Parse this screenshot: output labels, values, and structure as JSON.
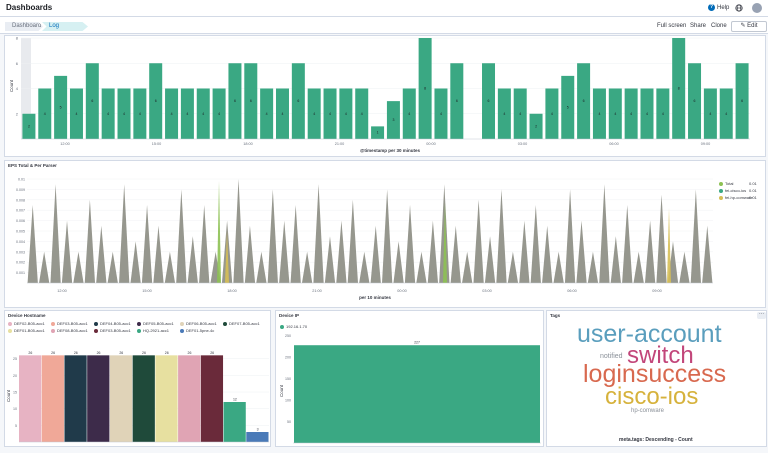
{
  "header": {
    "title": "Dashboards",
    "help_label": "Help"
  },
  "breadcrumbs": [
    "Dashboard",
    "Log Overview"
  ],
  "nav_links": {
    "full_screen": "Full screen",
    "share": "Share",
    "clone": "Clone",
    "edit": "Edit"
  },
  "top_chart": {
    "ylabel": "Count",
    "xlabel": "@timestamp per 30 minutes",
    "y_ticks": [
      "2",
      "4",
      "6",
      "8"
    ],
    "x_ticks": [
      "12:00",
      "15:00",
      "18:00",
      "21:00",
      "00:00",
      "03:00",
      "06:00",
      "09:00"
    ],
    "bars": [
      2,
      4,
      5,
      4,
      6,
      4,
      4,
      4,
      6,
      4,
      4,
      4,
      4,
      6,
      6,
      4,
      4,
      6,
      4,
      4,
      4,
      4,
      1,
      3,
      4,
      8,
      4,
      6,
      0,
      6,
      4,
      4,
      2,
      4,
      5,
      6,
      4,
      4,
      4,
      4,
      4,
      8,
      6,
      4,
      4,
      6
    ],
    "bar_labels": [
      "2",
      "4",
      "5",
      "4",
      "6",
      "4",
      "4",
      "4",
      "6",
      "4",
      "4",
      "4",
      "4",
      "6",
      "6",
      "4",
      "4",
      "6",
      "4",
      "4",
      "4",
      "4",
      "1",
      "3",
      "4",
      "8",
      "4",
      "6",
      "",
      "6",
      "4",
      "4",
      "2",
      "4",
      "5",
      "6",
      "4",
      "4",
      "4",
      "4",
      "4",
      "8",
      "6",
      "4",
      "4",
      "6"
    ],
    "color": "#3aa883"
  },
  "eps_chart": {
    "title": "EPS Total & Per Parser",
    "xlabel": "per 10 minutes",
    "y_ticks": [
      "0.001",
      "0.002",
      "0.003",
      "0.004",
      "0.005",
      "0.006",
      "0.007",
      "0.008",
      "0.009",
      "0.01"
    ],
    "x_ticks": [
      "12:00",
      "15:00",
      "18:00",
      "21:00",
      "00:00",
      "03:00",
      "06:00",
      "09:00"
    ],
    "legend": [
      {
        "name": "Total",
        "value": "0.01",
        "color": "#8dc153"
      },
      {
        "name": "fei-cisco-ios",
        "value": "0.01",
        "color": "#3aa883"
      },
      {
        "name": "fei-hp-comware",
        "value": "0.01",
        "color": "#d6bf57"
      }
    ]
  },
  "hostname_chart": {
    "title": "Device Hostname",
    "ylabel": "Count",
    "y_ticks": [
      "5",
      "10",
      "15",
      "20",
      "25"
    ],
    "legend": [
      {
        "name": "DEF02-B05-acc1",
        "color": "#e7b3c3"
      },
      {
        "name": "DEF03-B05-acc1",
        "color": "#f0a898"
      },
      {
        "name": "DEF04-B05-acc1",
        "color": "#203a4a"
      },
      {
        "name": "DEF05-B05-acc1",
        "color": "#3d2b4a"
      },
      {
        "name": "DEF06-B05-acc1",
        "color": "#e0d3b8"
      },
      {
        "name": "DEF07-B05-acc1",
        "color": "#1f4a3a"
      },
      {
        "name": "DEF01-B05-acc1",
        "color": "#e7e0a0"
      },
      {
        "name": "DEF08-B05-acc1",
        "color": "#e0a4b4"
      },
      {
        "name": "DEF03-B05-acc1",
        "color": "#6a2a3a"
      },
      {
        "name": "HQ-2921-acc1",
        "color": "#3aa883"
      },
      {
        "name": "DEF01-5pne-4c",
        "color": "#4a7ab8"
      }
    ],
    "values": [
      26,
      26,
      26,
      26,
      26,
      26,
      26,
      26,
      26,
      12,
      3
    ],
    "value_labels": [
      "26",
      "26",
      "26",
      "26",
      "26",
      "26",
      "26",
      "26",
      "26",
      "12",
      "3"
    ]
  },
  "device_ip_chart": {
    "title": "Device IP",
    "ylabel": "Count",
    "y_ticks": [
      "50",
      "100",
      "150",
      "200",
      "250"
    ],
    "legend": [
      {
        "name": "192.16.1.70",
        "color": "#3aa883"
      }
    ],
    "value": 227,
    "value_label": "227"
  },
  "tags_cloud": {
    "title": "Tags",
    "footer": "meta.tags: Descending - Count",
    "words": [
      {
        "text": "user-account",
        "color": "#5a9ebd"
      },
      {
        "text": "notified",
        "color": "#8b9199"
      },
      {
        "text": "switch",
        "color": "#c2467a"
      },
      {
        "text": "loginsuccess",
        "color": "#d8694f"
      },
      {
        "text": "cisco-ios",
        "color": "#d6b23c"
      },
      {
        "text": "hp-comware",
        "color": "#8b9199"
      }
    ]
  }
}
